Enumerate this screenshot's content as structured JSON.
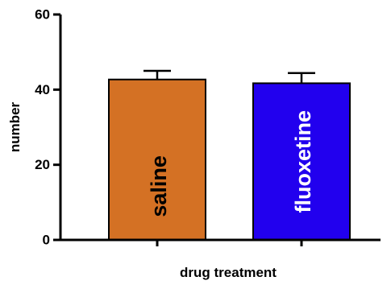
{
  "chart_data": {
    "type": "bar",
    "categories": [
      "saline",
      "fluoxetine"
    ],
    "values": [
      42.7,
      41.7
    ],
    "errors": [
      2.3,
      2.7
    ],
    "colors": [
      "#d47124",
      "#2200ee"
    ],
    "label_colors": [
      "#000000",
      "#ffffff"
    ],
    "xlabel": "drug treatment",
    "ylabel": "number",
    "ylim": [
      0,
      60
    ],
    "yticks": [
      0,
      20,
      40,
      60
    ],
    "grid": false
  }
}
